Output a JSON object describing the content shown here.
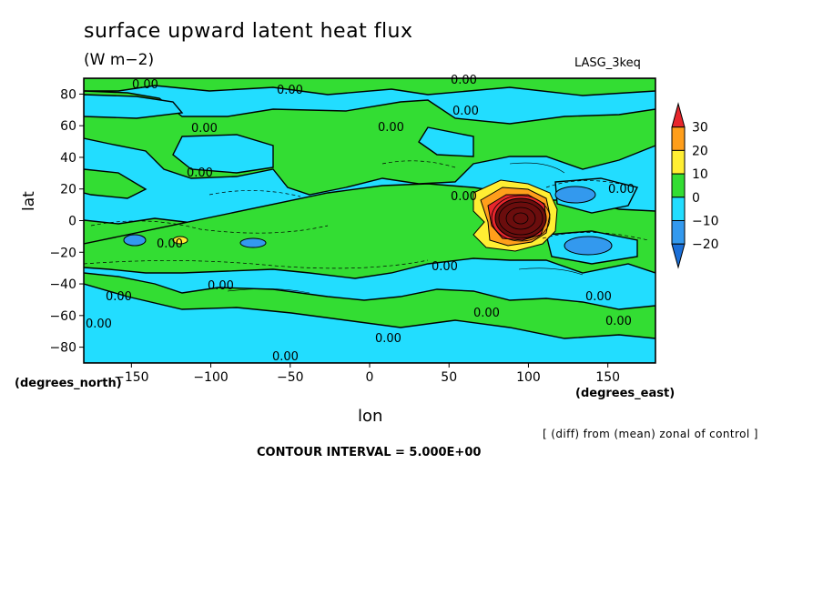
{
  "chart_data": {
    "type": "heatmap",
    "title": "surface upward latent heat flux",
    "units": "(W m−2)",
    "dataset": "LASG_3keq",
    "xlabel": "lon",
    "ylabel": "lat",
    "x_unit_label": "(degrees_east)",
    "y_unit_label": "(degrees_north)",
    "xlim": [
      -180,
      180
    ],
    "ylim": [
      -90,
      90
    ],
    "x_ticks": [
      -150,
      -100,
      -50,
      0,
      50,
      100,
      150
    ],
    "y_ticks": [
      -80,
      -60,
      -40,
      -20,
      0,
      20,
      40,
      60,
      80
    ],
    "note": "[ (diff) from (mean) zonal of control ]",
    "contour_interval": "CONTOUR INTERVAL = 5.000E+00",
    "contour_label": "0.00",
    "colorbar": {
      "levels": [
        30,
        20,
        10,
        0,
        -10,
        -20
      ],
      "colors": [
        "#e8262c",
        "#ff9e1b",
        "#ffee33",
        "#33dd33",
        "#22ddff",
        "#3399ee",
        "#1a6fd8"
      ]
    },
    "features": [
      {
        "lon": 90,
        "lat": 0,
        "value": 45
      },
      {
        "lon": 80,
        "lat": 14,
        "value": 22
      },
      {
        "lon": 75,
        "lat": -12,
        "value": 18
      },
      {
        "lon": 135,
        "lat": 14,
        "value": -17
      },
      {
        "lon": 140,
        "lat": -16,
        "value": -18
      },
      {
        "lon": -155,
        "lat": -13,
        "value": -15
      },
      {
        "lon": -120,
        "lat": -13,
        "value": 12
      },
      {
        "lon": -75,
        "lat": -14,
        "value": -14
      }
    ]
  }
}
